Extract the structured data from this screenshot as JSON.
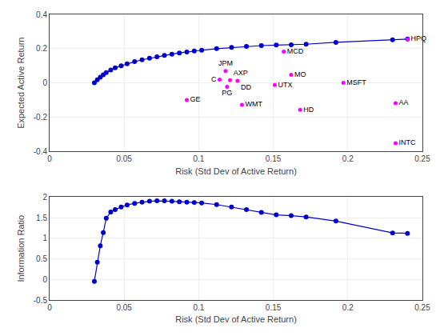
{
  "chart_data": [
    {
      "type": "scatter",
      "xlabel": "Risk (Std Dev of Active Return)",
      "ylabel": "Expected Active Return",
      "xlim": [
        0,
        0.25
      ],
      "ylim": [
        -0.4,
        0.4
      ],
      "xticks": [
        0,
        0.05,
        0.1,
        0.15,
        0.2,
        0.25
      ],
      "yticks": [
        -0.4,
        -0.2,
        0,
        0.2,
        0.4
      ],
      "grid": true,
      "series": [
        {
          "type": "line",
          "marker": "circle",
          "line_style": "solid",
          "color": "#0000cc",
          "x": [
            0.03,
            0.032,
            0.034,
            0.036,
            0.038,
            0.041,
            0.044,
            0.048,
            0.052,
            0.057,
            0.062,
            0.067,
            0.072,
            0.077,
            0.082,
            0.087,
            0.092,
            0.097,
            0.102,
            0.112,
            0.122,
            0.132,
            0.142,
            0.152,
            0.162,
            0.172,
            0.192,
            0.23,
            0.24
          ],
          "values": [
            0.001,
            0.018,
            0.033,
            0.047,
            0.06,
            0.075,
            0.088,
            0.1,
            0.112,
            0.124,
            0.135,
            0.144,
            0.153,
            0.161,
            0.168,
            0.175,
            0.181,
            0.186,
            0.191,
            0.2,
            0.207,
            0.213,
            0.218,
            0.221,
            0.223,
            0.226,
            0.237,
            0.252,
            0.256
          ]
        },
        {
          "type": "scatter",
          "marker": "circle",
          "color": "#ff00ff",
          "x": [
            0.118,
            0.114,
            0.121,
            0.126,
            0.119,
            0.092,
            0.129,
            0.151,
            0.162,
            0.157,
            0.168,
            0.197,
            0.232,
            0.232,
            0.24
          ],
          "values": [
            0.07,
            0.02,
            0.016,
            0.013,
            -0.022,
            -0.1,
            -0.128,
            -0.012,
            0.048,
            0.183,
            -0.157,
            0.001,
            -0.118,
            -0.352,
            0.255
          ],
          "labels": [
            "JPM",
            "C",
            "AXP",
            "DD",
            "PG",
            "GE",
            "WMT",
            "UTX",
            "MO",
            "MCD",
            "HD",
            "MSFT",
            "AA",
            "INTC",
            "HPQ"
          ]
        }
      ]
    },
    {
      "type": "line",
      "xlabel": "Risk (Std Dev of Active Return)",
      "ylabel": "Information Ratio",
      "xlim": [
        0,
        0.25
      ],
      "ylim": [
        -0.5,
        2.0
      ],
      "xticks": [
        0,
        0.05,
        0.1,
        0.15,
        0.2,
        0.25
      ],
      "yticks": [
        -0.5,
        0,
        0.5,
        1,
        1.5,
        2
      ],
      "grid": true,
      "series": [
        {
          "type": "line",
          "marker": "circle",
          "line_style": "solid",
          "color": "#0000cc",
          "x": [
            0.03,
            0.032,
            0.034,
            0.036,
            0.038,
            0.041,
            0.044,
            0.048,
            0.052,
            0.057,
            0.062,
            0.067,
            0.072,
            0.077,
            0.082,
            0.087,
            0.092,
            0.097,
            0.102,
            0.112,
            0.122,
            0.132,
            0.142,
            0.152,
            0.162,
            0.172,
            0.192,
            0.23,
            0.24
          ],
          "values": [
            -0.05,
            0.42,
            0.82,
            1.14,
            1.49,
            1.64,
            1.7,
            1.76,
            1.81,
            1.85,
            1.88,
            1.9,
            1.91,
            1.91,
            1.9,
            1.89,
            1.88,
            1.87,
            1.86,
            1.82,
            1.76,
            1.7,
            1.63,
            1.57,
            1.55,
            1.52,
            1.42,
            1.13,
            1.12
          ]
        }
      ]
    }
  ]
}
